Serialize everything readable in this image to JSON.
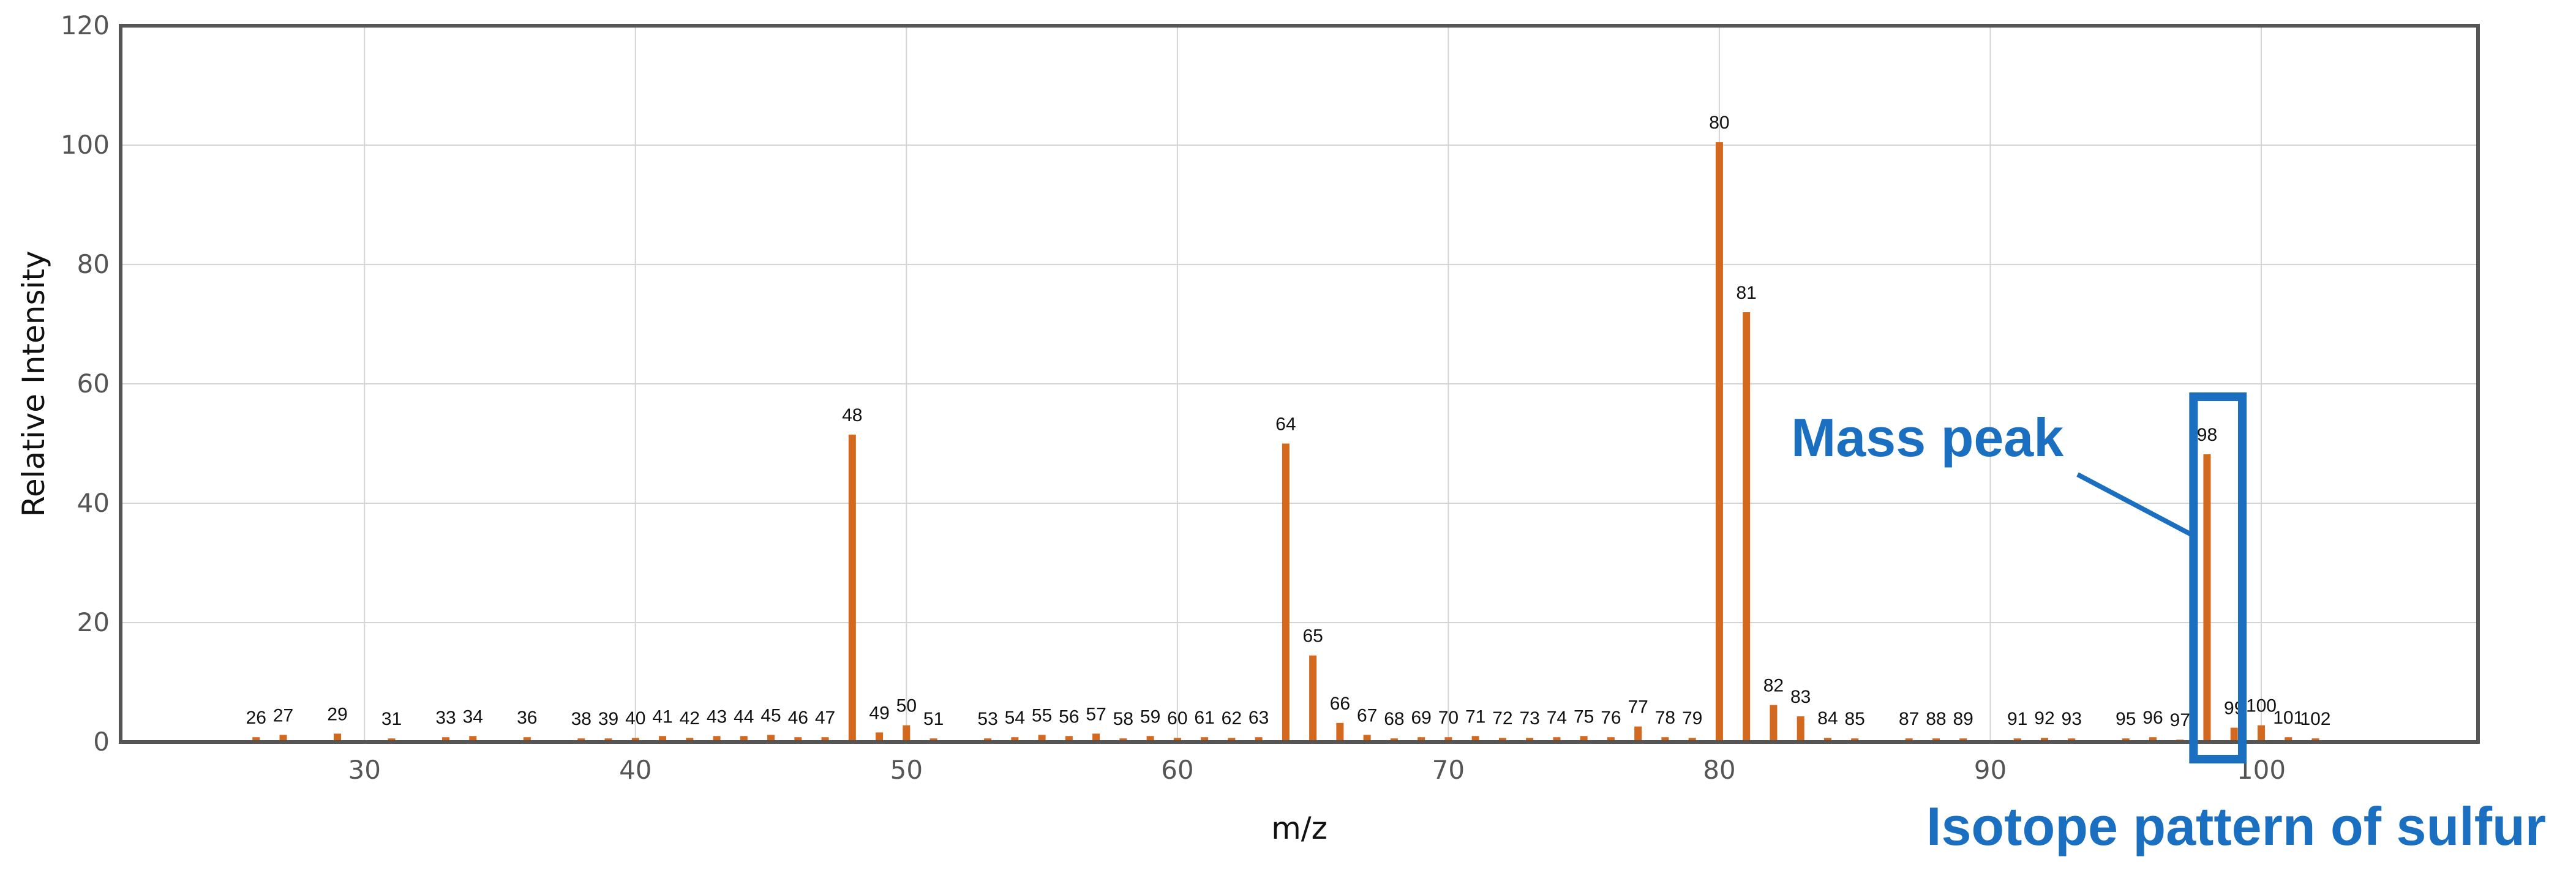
{
  "colors": {
    "bar": "#d2691e",
    "annotation": "#1a6fc0",
    "grid": "#d4d4d4",
    "frame": "#555555"
  },
  "chart_data": {
    "type": "bar",
    "title": "",
    "xlabel": "m/z",
    "ylabel": "Relative Intensity",
    "xlim": [
      21,
      108
    ],
    "ylim": [
      0,
      120
    ],
    "xticks": [
      30,
      40,
      50,
      60,
      70,
      80,
      90,
      100
    ],
    "yticks": [
      0,
      20,
      40,
      60,
      80,
      100,
      120
    ],
    "grid": true,
    "series": [
      {
        "x": [
          26,
          27,
          29,
          31,
          33,
          34,
          36,
          38,
          39,
          40,
          41,
          42,
          43,
          44,
          45,
          46,
          47,
          48,
          49,
          50,
          51,
          53,
          54,
          55,
          56,
          57,
          58,
          59,
          60,
          61,
          62,
          63,
          64,
          65,
          66,
          67,
          68,
          69,
          70,
          71,
          72,
          73,
          74,
          75,
          76,
          77,
          78,
          79,
          80,
          81,
          82,
          83,
          84,
          85,
          87,
          88,
          89,
          91,
          92,
          93,
          95,
          96,
          97,
          98,
          99,
          100,
          101,
          102
        ],
        "values": [
          0.8,
          1.2,
          1.4,
          0.6,
          0.8,
          1.0,
          0.8,
          0.6,
          0.6,
          0.7,
          1.0,
          0.7,
          1.0,
          1.0,
          1.2,
          0.8,
          0.8,
          51.5,
          1.6,
          2.8,
          0.6,
          0.6,
          0.8,
          1.2,
          1.0,
          1.4,
          0.6,
          1.0,
          0.7,
          0.8,
          0.7,
          0.8,
          50,
          14.5,
          3.2,
          1.2,
          0.6,
          0.8,
          0.8,
          1.0,
          0.7,
          0.7,
          0.8,
          1.0,
          0.8,
          2.6,
          0.8,
          0.7,
          100.5,
          72,
          6.2,
          4.3,
          0.7,
          0.6,
          0.6,
          0.6,
          0.6,
          0.6,
          0.7,
          0.6,
          0.6,
          0.8,
          0.4,
          48.2,
          2.4,
          2.8,
          0.8,
          0.6
        ]
      }
    ],
    "annotations": [
      {
        "text": "Mass peak",
        "x": 98
      },
      {
        "text": "Isotope pattern of sulfur",
        "x_range": [
          97.5,
          99.3
        ]
      }
    ]
  }
}
